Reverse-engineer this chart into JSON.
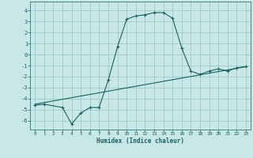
{
  "title": "",
  "xlabel": "Humidex (Indice chaleur)",
  "background_color": "#c8e8e8",
  "grid_color": "#a0c8c8",
  "line_color": "#1a6060",
  "xlim": [
    -0.5,
    23.5
  ],
  "ylim": [
    -6.8,
    4.8
  ],
  "xticks": [
    0,
    1,
    2,
    3,
    4,
    5,
    6,
    7,
    8,
    9,
    10,
    11,
    12,
    13,
    14,
    15,
    16,
    17,
    18,
    19,
    20,
    21,
    22,
    23
  ],
  "yticks": [
    -6,
    -5,
    -4,
    -3,
    -2,
    -1,
    0,
    1,
    2,
    3,
    4
  ],
  "curve1_x": [
    0,
    1,
    3,
    4,
    5,
    6,
    7,
    8,
    9,
    10,
    11,
    12,
    13,
    14,
    15,
    16,
    17,
    18,
    19,
    20,
    21,
    22,
    23
  ],
  "curve1_y": [
    -4.6,
    -4.5,
    -4.8,
    -6.3,
    -5.3,
    -4.8,
    -4.8,
    -2.3,
    0.7,
    3.2,
    3.5,
    3.6,
    3.8,
    3.8,
    3.3,
    0.6,
    -1.5,
    -1.8,
    -1.5,
    -1.3,
    -1.5,
    -1.2,
    -1.1
  ],
  "curve2_x": [
    0,
    23
  ],
  "curve2_y": [
    -4.5,
    -1.1
  ],
  "marker_size": 3.0
}
